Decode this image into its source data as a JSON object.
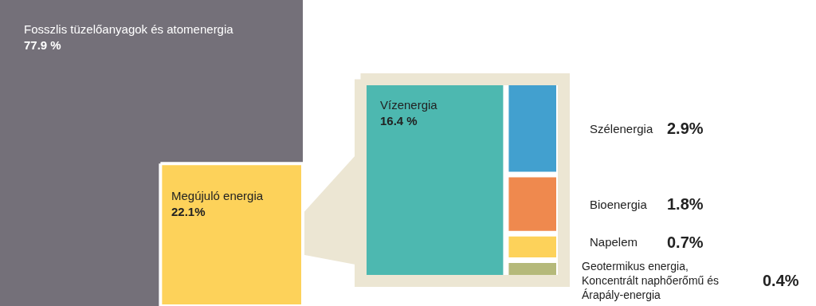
{
  "chart_data": {
    "type": "other",
    "categories": [
      "Fosszlis tüzelőanyagok és atomenergia",
      "Megújuló energia",
      "Vízenergia",
      "Szélenergia",
      "Bioenergia",
      "Napelem",
      "Geotermikus energia,\nKoncentrált naphőerőmű és\nÁrapály-energia"
    ],
    "values": [
      77.9,
      22.1,
      16.4,
      2.9,
      1.8,
      0.7,
      0.4
    ],
    "value_labels": [
      "77.9 %",
      "22.1%",
      "16.4 %",
      "2.9%",
      "1.8%",
      "0.7%",
      "0.4%"
    ],
    "colors": [
      "#747079",
      "#fdd25a",
      "#4db8b0",
      "#42a0cf",
      "#ef894e",
      "#fdd25a",
      "#b5b97a"
    ]
  }
}
